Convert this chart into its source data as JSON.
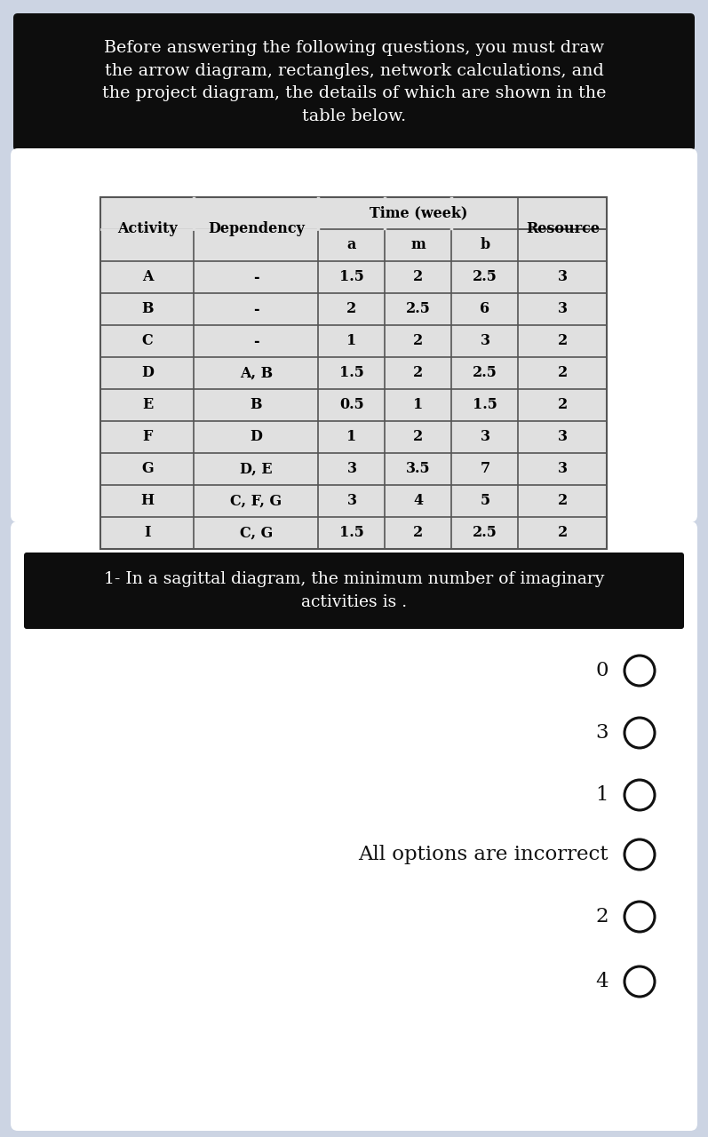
{
  "bg_color": "#ccd4e3",
  "white_bg": "#ffffff",
  "header_bg": "#0d0d0d",
  "header_text_color": "#ffffff",
  "header_text": "Before answering the following questions, you must draw\nthe arrow diagram, rectangles, network calculations, and\nthe project diagram, the details of which are shown in the\ntable below.",
  "table_data": [
    [
      "A",
      "-",
      "1.5",
      "2",
      "2.5",
      "3"
    ],
    [
      "B",
      "-",
      "2",
      "2.5",
      "6",
      "3"
    ],
    [
      "C",
      "-",
      "1",
      "2",
      "3",
      "2"
    ],
    [
      "D",
      "A, B",
      "1.5",
      "2",
      "2.5",
      "2"
    ],
    [
      "E",
      "B",
      "0.5",
      "1",
      "1.5",
      "2"
    ],
    [
      "F",
      "D",
      "1",
      "2",
      "3",
      "3"
    ],
    [
      "G",
      "D, E",
      "3",
      "3.5",
      "7",
      "3"
    ],
    [
      "H",
      "C, F, G",
      "3",
      "4",
      "5",
      "2"
    ],
    [
      "I",
      "C, G",
      "1.5",
      "2",
      "2.5",
      "2"
    ]
  ],
  "question_bg": "#0d0d0d",
  "question_text_color": "#ffffff",
  "question_text": "1- In a sagittal diagram, the minimum number of imaginary\nactivities is .",
  "options": [
    "0",
    "3",
    "1",
    "All options are incorrect",
    "2",
    "4"
  ],
  "option_text_color": "#111111",
  "circle_color": "#111111",
  "table_border_color": "#555555",
  "table_bg": "#e0e0e0"
}
